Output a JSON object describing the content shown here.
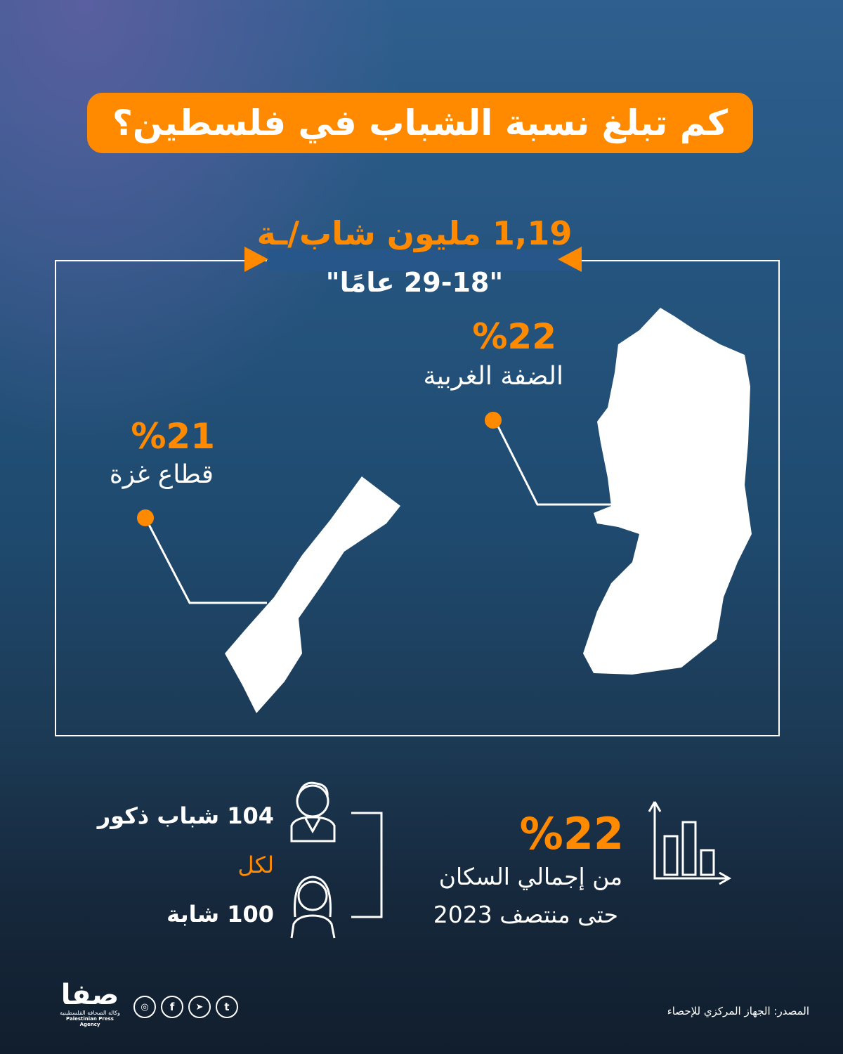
{
  "title": "كم تبلغ نسبة الشباب في فلسطين؟",
  "total": {
    "headline": "1,19 مليون شاب/ـة",
    "ages": "\"29-18 عامًا\""
  },
  "regions": [
    {
      "name": "الضفة الغربية",
      "percent": "%22"
    },
    {
      "name": "قطاع غزة",
      "percent": "%21"
    }
  ],
  "gender": {
    "male": "104 شباب ذكور",
    "per": "لكل",
    "female": "100 شابة"
  },
  "population": {
    "percent": "%22",
    "line1": "من إجمالي السكان",
    "line2": "حتى منتصف 2023"
  },
  "footer": {
    "source": "المصدر: الجهاز المركزي للإحصاء",
    "logo_text": "صفا",
    "logo_ar": "وكالة الصحافة الفلسطينية",
    "logo_en": "Palestinian Press Agency",
    "social": [
      "instagram-icon",
      "facebook-icon",
      "telegram-icon",
      "tumblr-icon"
    ]
  },
  "colors": {
    "accent": "#ff8a00",
    "text": "#ffffff"
  }
}
